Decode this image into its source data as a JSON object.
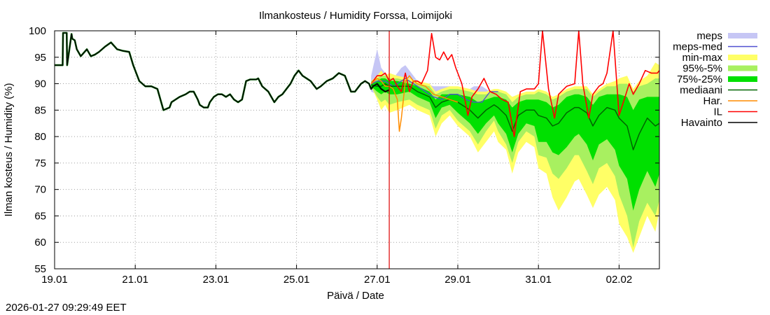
{
  "chart_data": {
    "type": "line",
    "title": "Ilmankosteus / Humidity  Forssa, Loimijoki",
    "xlabel": "Päivä / Date",
    "ylabel": "Ilman kosteus / Humidity (%)",
    "ylim": [
      55,
      100
    ],
    "yticks": [
      55,
      60,
      65,
      70,
      75,
      80,
      85,
      90,
      95,
      100
    ],
    "xlim_days": [
      0,
      15
    ],
    "x_unit": "days since 19.01 00:00",
    "xticks": [
      {
        "day": 0,
        "label": "19.01"
      },
      {
        "day": 2,
        "label": "21.01"
      },
      {
        "day": 4,
        "label": "23.01"
      },
      {
        "day": 6,
        "label": "25.01"
      },
      {
        "day": 8,
        "label": "27.01"
      },
      {
        "day": 10,
        "label": "29.01"
      },
      {
        "day": 12,
        "label": "31.01"
      },
      {
        "day": 14,
        "label": "02.02"
      }
    ],
    "grid": true,
    "now_marker_day": 8.3,
    "legend_position": "right",
    "legend": [
      {
        "key": "meps",
        "label": "meps",
        "kind": "band",
        "color": "#c6c6f5"
      },
      {
        "key": "meps_med",
        "label": "meps-med",
        "kind": "line",
        "color": "#5050d0"
      },
      {
        "key": "minmax",
        "label": "min-max",
        "kind": "band",
        "color": "#ffff66"
      },
      {
        "key": "p95_5",
        "label": "95%-5%",
        "kind": "band",
        "color": "#a8f060"
      },
      {
        "key": "p75_25",
        "label": "75%-25%",
        "kind": "band",
        "color": "#00e000"
      },
      {
        "key": "median",
        "label": "mediaani",
        "kind": "line",
        "color": "#006400"
      },
      {
        "key": "har",
        "label": "Har.",
        "kind": "line",
        "color": "#ff8c00"
      },
      {
        "key": "il",
        "label": "IL",
        "kind": "line",
        "color": "#ff0000"
      },
      {
        "key": "obs",
        "label": "Havainto",
        "kind": "line",
        "color": "#000000"
      }
    ],
    "series": {
      "observed": {
        "x": [
          0,
          0.2,
          0.21,
          0.3,
          0.31,
          0.42,
          0.44,
          0.5,
          0.55,
          0.65,
          0.8,
          0.9,
          1.0,
          1.1,
          1.25,
          1.4,
          1.55,
          1.7,
          1.85,
          1.95,
          2.0,
          2.1,
          2.25,
          2.4,
          2.55,
          2.7,
          2.85,
          2.9,
          3.0,
          3.1,
          3.25,
          3.35,
          3.45,
          3.55,
          3.6,
          3.7,
          3.8,
          3.85,
          3.95,
          4.05,
          4.15,
          4.25,
          4.35,
          4.45,
          4.55,
          4.65,
          4.75,
          4.85,
          4.9,
          5.0,
          5.05,
          5.15,
          5.3,
          5.45,
          5.55,
          5.65,
          5.75,
          5.85,
          5.95,
          6.05,
          6.15,
          6.25,
          6.35,
          6.45,
          6.5,
          6.6,
          6.75,
          6.9,
          7.05,
          7.2,
          7.3,
          7.35,
          7.45,
          7.55,
          7.6,
          7.7,
          7.8,
          7.85,
          7.9,
          8.0,
          8.1,
          8.2,
          8.3
        ],
        "y": [
          93.5,
          93.5,
          99.6,
          99.6,
          93.5,
          99.4,
          98.5,
          98.2,
          96.5,
          95.2,
          96.5,
          95.2,
          95.5,
          96.0,
          97.0,
          97.8,
          96.5,
          96.2,
          96.0,
          93.5,
          92.5,
          90.5,
          89.5,
          89.5,
          89.0,
          85.0,
          85.5,
          86.5,
          87.0,
          87.5,
          88.0,
          88.5,
          88.5,
          87.0,
          86.0,
          85.5,
          85.5,
          86.5,
          87.5,
          88.0,
          88.0,
          87.5,
          88.0,
          87.0,
          86.5,
          87.0,
          90.5,
          90.8,
          90.8,
          90.8,
          91.0,
          89.5,
          88.5,
          86.5,
          87.5,
          88.0,
          89.0,
          90.0,
          91.5,
          92.5,
          91.5,
          91.0,
          90.5,
          89.5,
          89.0,
          89.5,
          90.5,
          91.0,
          92.0,
          91.5,
          89.5,
          88.5,
          88.5,
          89.5,
          90.0,
          90.5,
          90.0,
          89.0,
          89.5,
          90.0,
          89.0,
          88.5,
          88.8
        ]
      },
      "minmax": {
        "x": [
          7.85,
          8.0,
          8.1,
          8.2,
          8.3,
          8.5,
          8.8,
          9.0,
          9.3,
          9.45,
          9.6,
          9.8,
          10.0,
          10.3,
          10.5,
          10.7,
          10.9,
          11.0,
          11.2,
          11.35,
          11.5,
          11.7,
          11.9,
          12.0,
          12.2,
          12.35,
          12.5,
          12.7,
          12.9,
          13.0,
          13.2,
          13.35,
          13.5,
          13.7,
          13.9,
          14.0,
          14.2,
          14.35,
          14.5,
          14.7,
          14.9,
          15.0
        ],
        "lo": [
          89.5,
          87.0,
          85.0,
          86.0,
          84.5,
          85.0,
          86.0,
          85.0,
          84.0,
          80.0,
          82.5,
          84.0,
          82.0,
          80.0,
          77.0,
          79.0,
          81.0,
          79.0,
          77.5,
          73.0,
          77.0,
          79.0,
          78.0,
          74.0,
          73.0,
          68.5,
          66.0,
          68.5,
          71.5,
          72.0,
          69.0,
          66.5,
          69.0,
          70.5,
          68.0,
          63.5,
          61.0,
          58.0,
          61.0,
          65.0,
          62.0,
          66.0
        ],
        "hi": [
          90.5,
          91.5,
          92.5,
          91.5,
          92.0,
          91.5,
          91.0,
          90.5,
          90.0,
          88.5,
          89.0,
          89.5,
          89.5,
          89.0,
          88.5,
          88.5,
          89.0,
          89.0,
          88.5,
          87.5,
          88.0,
          88.5,
          88.5,
          89.0,
          88.5,
          87.5,
          88.0,
          89.0,
          89.5,
          89.5,
          89.5,
          88.0,
          89.0,
          90.0,
          90.5,
          91.0,
          91.5,
          89.0,
          90.5,
          91.5,
          94.0,
          93.5
        ]
      },
      "p95_5": {
        "x": [
          7.85,
          8.0,
          8.1,
          8.2,
          8.3,
          8.5,
          8.8,
          9.0,
          9.3,
          9.45,
          9.6,
          9.8,
          10.0,
          10.3,
          10.5,
          10.7,
          10.9,
          11.0,
          11.2,
          11.35,
          11.5,
          11.7,
          11.9,
          12.0,
          12.2,
          12.35,
          12.5,
          12.7,
          12.9,
          13.0,
          13.2,
          13.35,
          13.5,
          13.7,
          13.9,
          14.0,
          14.2,
          14.35,
          14.5,
          14.7,
          14.9,
          15.0
        ],
        "lo": [
          89.5,
          87.5,
          86.5,
          87.0,
          86.0,
          86.5,
          87.0,
          86.0,
          85.0,
          81.5,
          84.0,
          85.0,
          83.0,
          81.0,
          78.5,
          81.0,
          83.0,
          81.0,
          78.5,
          75.0,
          79.0,
          81.0,
          80.0,
          76.5,
          76.0,
          73.0,
          72.0,
          74.0,
          76.5,
          76.5,
          73.5,
          71.0,
          74.0,
          75.0,
          72.5,
          69.0,
          65.0,
          59.0,
          64.0,
          67.5,
          65.0,
          68.0
        ],
        "hi": [
          90.5,
          91.0,
          91.5,
          91.5,
          91.0,
          91.0,
          90.5,
          90.0,
          89.5,
          88.0,
          88.5,
          89.0,
          89.0,
          88.5,
          88.0,
          88.0,
          88.5,
          88.5,
          88.0,
          86.5,
          87.5,
          88.0,
          88.0,
          88.5,
          88.0,
          87.0,
          87.5,
          88.5,
          89.0,
          89.0,
          89.0,
          87.5,
          88.5,
          89.5,
          89.5,
          90.0,
          90.0,
          88.5,
          89.5,
          90.0,
          91.0,
          91.0
        ]
      },
      "p75_25": {
        "x": [
          7.85,
          8.0,
          8.1,
          8.2,
          8.3,
          8.5,
          8.8,
          9.0,
          9.3,
          9.45,
          9.6,
          9.8,
          10.0,
          10.3,
          10.5,
          10.7,
          10.9,
          11.0,
          11.2,
          11.35,
          11.5,
          11.7,
          11.9,
          12.0,
          12.2,
          12.35,
          12.5,
          12.7,
          12.9,
          13.0,
          13.2,
          13.35,
          13.5,
          13.7,
          13.9,
          14.0,
          14.2,
          14.35,
          14.5,
          14.7,
          14.9,
          15.0
        ],
        "lo": [
          89.5,
          88.5,
          88.0,
          88.5,
          88.0,
          88.0,
          88.5,
          87.5,
          86.5,
          83.5,
          85.5,
          86.0,
          84.5,
          82.5,
          80.5,
          82.5,
          84.0,
          82.5,
          80.5,
          77.0,
          80.5,
          82.5,
          82.0,
          79.0,
          79.0,
          77.0,
          76.5,
          78.0,
          80.0,
          80.5,
          78.5,
          75.5,
          78.5,
          79.5,
          77.5,
          74.5,
          72.0,
          66.0,
          70.0,
          73.5,
          70.5,
          73.0
        ],
        "hi": [
          90.0,
          90.5,
          91.0,
          91.0,
          90.5,
          90.5,
          90.0,
          89.5,
          88.5,
          87.0,
          88.0,
          88.0,
          88.0,
          87.5,
          86.5,
          87.0,
          87.5,
          87.5,
          87.0,
          85.5,
          86.5,
          87.0,
          87.0,
          87.0,
          86.5,
          85.5,
          86.0,
          87.5,
          88.0,
          88.0,
          87.5,
          86.0,
          87.5,
          88.0,
          88.0,
          88.0,
          87.5,
          85.0,
          87.0,
          87.5,
          87.5,
          87.5
        ]
      },
      "median": {
        "x": [
          7.85,
          8.0,
          8.1,
          8.2,
          8.3,
          8.5,
          8.8,
          9.0,
          9.3,
          9.45,
          9.6,
          9.8,
          10.0,
          10.3,
          10.5,
          10.7,
          10.9,
          11.0,
          11.2,
          11.35,
          11.5,
          11.7,
          11.9,
          12.0,
          12.2,
          12.35,
          12.5,
          12.7,
          12.9,
          13.0,
          13.2,
          13.35,
          13.5,
          13.7,
          13.9,
          14.0,
          14.2,
          14.35,
          14.5,
          14.7,
          14.9,
          15.0
        ],
        "y": [
          89.8,
          89.5,
          89.5,
          90.0,
          89.5,
          89.5,
          89.5,
          88.5,
          87.5,
          85.5,
          86.5,
          87.0,
          86.5,
          85.0,
          83.5,
          85.0,
          86.0,
          85.5,
          84.0,
          81.0,
          84.0,
          85.0,
          85.0,
          84.0,
          83.5,
          82.0,
          82.5,
          84.5,
          85.5,
          85.5,
          84.5,
          82.0,
          84.0,
          85.5,
          85.0,
          83.5,
          82.0,
          77.5,
          80.5,
          83.5,
          82.0,
          82.5
        ]
      },
      "meps_band": {
        "x": [
          7.85,
          8.0,
          8.1,
          8.2,
          8.3,
          8.4,
          8.5,
          8.6,
          8.7,
          8.8,
          9.0,
          9.2,
          9.4,
          9.6,
          9.8,
          10.0,
          10.2,
          10.4,
          10.6,
          10.8,
          11.0
        ],
        "lo": [
          88.5,
          88.0,
          89.0,
          89.0,
          89.0,
          88.5,
          88.0,
          88.5,
          89.0,
          88.5,
          88.0,
          87.5,
          86.5,
          86.0,
          86.5,
          86.5,
          85.5,
          85.0,
          85.0,
          86.0,
          86.5
        ],
        "hi": [
          91.5,
          96.5,
          93.0,
          92.0,
          91.5,
          91.0,
          92.0,
          93.0,
          93.5,
          92.5,
          90.5,
          90.0,
          89.5,
          89.5,
          89.5,
          89.0,
          88.5,
          89.5,
          89.5,
          88.5,
          88.0
        ]
      },
      "meps_med": {
        "x": [
          7.85,
          8.0,
          8.1,
          8.2,
          8.3,
          8.4,
          8.5,
          8.6,
          8.7,
          8.8,
          9.0,
          9.2,
          9.4,
          9.6,
          9.8,
          10.0,
          10.2,
          10.4,
          10.6,
          10.8,
          11.0
        ],
        "y": [
          90.0,
          90.5,
          90.5,
          90.5,
          90.0,
          89.5,
          90.0,
          90.5,
          91.0,
          90.5,
          89.5,
          88.5,
          87.5,
          87.0,
          88.0,
          88.0,
          87.0,
          86.5,
          86.5,
          88.5,
          88.5
        ]
      },
      "har": {
        "x": [
          7.85,
          8.0,
          8.1,
          8.2,
          8.3,
          8.4,
          8.5,
          8.55,
          8.6,
          8.7,
          8.8,
          8.9,
          9.0,
          9.2,
          9.4,
          9.6,
          9.8,
          10.0
        ],
        "y": [
          90.0,
          91.0,
          90.5,
          89.5,
          89.5,
          89.0,
          87.0,
          81.0,
          83.5,
          90.5,
          91.5,
          90.5,
          90.0,
          89.5,
          88.0,
          87.5,
          87.0,
          86.5
        ]
      },
      "il": {
        "x": [
          7.85,
          8.0,
          8.1,
          8.2,
          8.3,
          8.4,
          8.5,
          8.6,
          8.7,
          8.8,
          8.9,
          9.0,
          9.1,
          9.25,
          9.35,
          9.45,
          9.55,
          9.65,
          9.75,
          9.85,
          9.95,
          10.1,
          10.25,
          10.35,
          10.5,
          10.65,
          10.8,
          10.95,
          11.1,
          11.25,
          11.4,
          11.55,
          11.7,
          11.9,
          12.0,
          12.1,
          12.25,
          12.4,
          12.5,
          12.7,
          12.9,
          13.0,
          13.1,
          13.25,
          13.35,
          13.5,
          13.6,
          13.7,
          13.85,
          14.0,
          14.15,
          14.25,
          14.35,
          14.5,
          14.65,
          14.8,
          14.95,
          15.0
        ],
        "y": [
          90.0,
          91.5,
          91.5,
          92.0,
          90.5,
          91.0,
          89.5,
          88.5,
          92.0,
          88.5,
          90.5,
          90.5,
          90.0,
          92.5,
          99.5,
          95.0,
          94.5,
          96.0,
          94.5,
          95.5,
          93.0,
          90.0,
          84.0,
          87.5,
          89.0,
          91.0,
          88.5,
          88.0,
          87.0,
          86.5,
          80.0,
          88.5,
          89.0,
          89.0,
          90.0,
          100.0,
          89.0,
          83.5,
          88.0,
          89.5,
          90.0,
          100.0,
          90.0,
          83.5,
          88.0,
          89.5,
          90.0,
          92.0,
          100.0,
          84.0,
          87.5,
          90.0,
          88.0,
          90.0,
          92.5,
          92.0,
          92.0,
          92.5
        ]
      }
    }
  }
}
